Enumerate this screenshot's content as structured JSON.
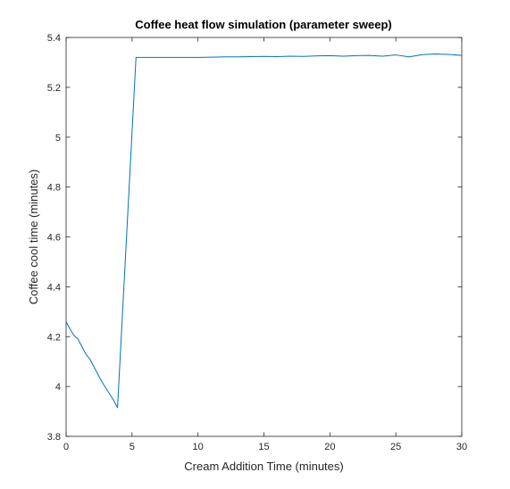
{
  "chart_data": {
    "type": "line",
    "title": "Coffee heat flow simulation (parameter sweep)",
    "xlabel": "Cream Addition Time (minutes)",
    "ylabel": "Coffee cool time (minutes)",
    "xlim": [
      0,
      30
    ],
    "ylim": [
      3.8,
      5.4
    ],
    "xticks": [
      0,
      5,
      10,
      15,
      20,
      25,
      30
    ],
    "yticks": [
      3.8,
      4.0,
      4.2,
      4.4,
      4.6,
      4.8,
      5.0,
      5.2,
      5.4
    ],
    "xtick_labels": [
      "0",
      "5",
      "10",
      "15",
      "20",
      "25",
      "30"
    ],
    "ytick_labels": [
      "3.8",
      "4",
      "4.2",
      "4.4",
      "4.6",
      "4.8",
      "5",
      "5.2",
      "5.4"
    ],
    "grid": false,
    "legend": "none",
    "series": [
      {
        "color": "#0072BD",
        "x": [
          0,
          0.3,
          0.6,
          0.9,
          1.2,
          1.5,
          1.8,
          2.1,
          2.4,
          2.7,
          3.0,
          3.3,
          3.6,
          3.9,
          5.3,
          6,
          7,
          8,
          9,
          10,
          11,
          12,
          13,
          14,
          15,
          16,
          17,
          18,
          19,
          20,
          21,
          22,
          23,
          24,
          25,
          26,
          27,
          28,
          29,
          30
        ],
        "y": [
          4.26,
          4.23,
          4.205,
          4.19,
          4.16,
          4.13,
          4.11,
          4.08,
          4.05,
          4.02,
          3.995,
          3.97,
          3.945,
          3.915,
          5.32,
          5.32,
          5.32,
          5.32,
          5.32,
          5.32,
          5.321,
          5.322,
          5.322,
          5.323,
          5.324,
          5.323,
          5.325,
          5.324,
          5.326,
          5.327,
          5.325,
          5.327,
          5.328,
          5.325,
          5.33,
          5.322,
          5.331,
          5.334,
          5.332,
          5.328
        ]
      }
    ]
  }
}
